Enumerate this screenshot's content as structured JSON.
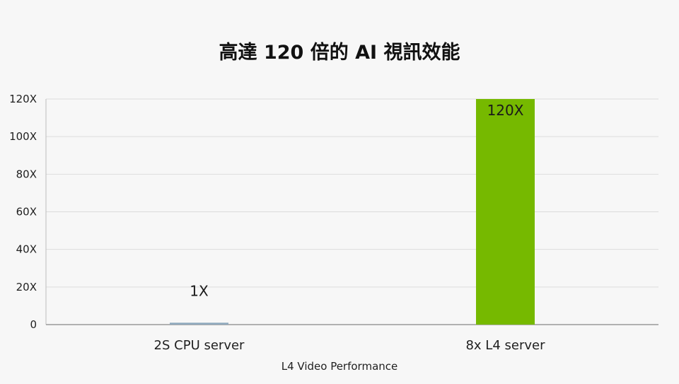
{
  "chart_data": {
    "type": "bar",
    "title": "高達 120 倍的 AI 視訊效能",
    "xlabel": "L4 Video Performance",
    "ylabel": "",
    "categories": [
      "2S CPU server",
      "8x L4 server"
    ],
    "values": [
      1,
      120
    ],
    "data_labels": [
      "1X",
      "120X"
    ],
    "ylim": [
      0,
      120
    ],
    "yticks": [
      0,
      20,
      40,
      60,
      80,
      100,
      120
    ],
    "ytick_labels": [
      "0",
      "20X",
      "40X",
      "60X",
      "80X",
      "100X",
      "120X"
    ],
    "grid": true,
    "legend": "none",
    "colors": [
      "#8fa9bd",
      "#76b900"
    ]
  }
}
